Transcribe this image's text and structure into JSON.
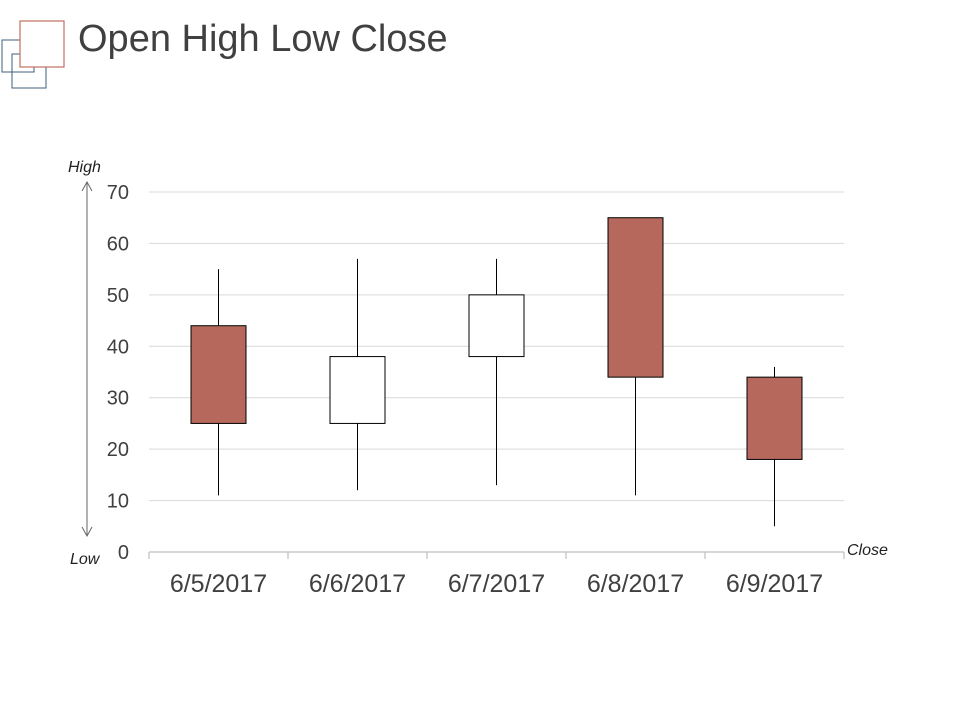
{
  "page": {
    "title": "Open High Low Close",
    "annotations": {
      "high": "High",
      "low": "Low",
      "close": "Close"
    }
  },
  "colors": {
    "down_candle": "#b5685b",
    "up_candle": "#ffffff",
    "outline": "#000000",
    "grid": "#d9d9d9",
    "axis": "#bfbfbf",
    "text": "#404040",
    "logo_red": "#c0705f",
    "logo_blue": "#3d5f7d"
  },
  "chart_data": {
    "type": "candlestick",
    "title": "Open High Low Close",
    "categories": [
      "6/5/2017",
      "6/6/2017",
      "6/7/2017",
      "6/8/2017",
      "6/9/2017"
    ],
    "open": [
      44,
      25,
      38,
      65,
      34
    ],
    "high": [
      55,
      57,
      57,
      65,
      36
    ],
    "low": [
      11,
      12,
      13,
      11,
      5
    ],
    "close": [
      25,
      38,
      50,
      34,
      18
    ],
    "ylim": [
      0,
      70
    ],
    "yticks": [
      0,
      10,
      20,
      30,
      40,
      50,
      60,
      70
    ],
    "grid": true,
    "legend": "none"
  }
}
